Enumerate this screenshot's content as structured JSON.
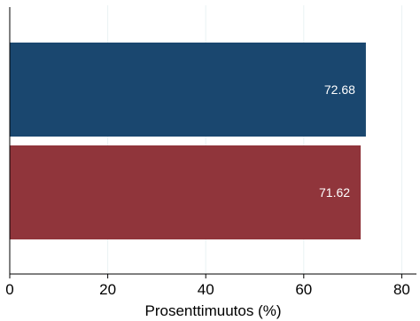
{
  "chart_data": {
    "type": "bar",
    "orientation": "horizontal",
    "title": "",
    "xlabel": "Prosenttimuutos (%)",
    "ylabel": "",
    "xlim": [
      0,
      83
    ],
    "xticks": [
      0,
      20,
      40,
      60,
      80
    ],
    "grid": "vertical",
    "categories": [
      "",
      ""
    ],
    "series": [
      {
        "values": [
          72.68,
          71.62
        ],
        "colors": [
          "#1a476f",
          "#90353b"
        ]
      }
    ],
    "data_labels": [
      "72.68",
      "71.62"
    ]
  }
}
